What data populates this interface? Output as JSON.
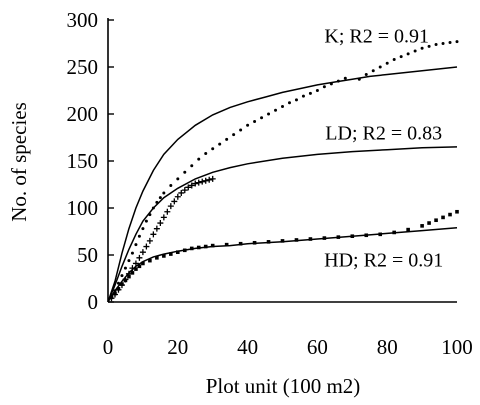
{
  "chart_data": {
    "type": "scatter",
    "title": "",
    "xlabel": "Plot unit (100 m2)",
    "ylabel": "No. of species",
    "xlim": [
      0,
      100
    ],
    "ylim": [
      0,
      300
    ],
    "x_ticks": [
      "0",
      "20",
      "40",
      "60",
      "80",
      "100"
    ],
    "y_ticks": [
      "0",
      "50",
      "100",
      "150",
      "200",
      "250",
      "300"
    ],
    "grid": false,
    "legend": "none",
    "annotations": [
      {
        "text": "K; R2 = 0.91",
        "x": 77,
        "y": 276
      },
      {
        "text": "LD; R2 = 0.83",
        "x": 79,
        "y": 173
      },
      {
        "text": "HD; R2 = 0.91",
        "x": 79,
        "y": 38
      }
    ],
    "series": [
      {
        "marker": "dot",
        "points": [
          [
            1,
            6
          ],
          [
            2,
            12
          ],
          [
            3,
            20
          ],
          [
            4,
            28
          ],
          [
            5,
            36
          ],
          [
            6,
            44
          ],
          [
            7,
            52
          ],
          [
            8,
            61
          ],
          [
            9,
            70
          ],
          [
            10,
            78
          ],
          [
            11,
            86
          ],
          [
            12,
            93
          ],
          [
            13,
            100
          ],
          [
            14,
            106
          ],
          [
            15,
            111
          ],
          [
            16,
            116
          ],
          [
            18,
            124
          ],
          [
            20,
            131
          ],
          [
            22,
            138
          ],
          [
            24,
            145
          ],
          [
            26,
            152
          ],
          [
            28,
            158
          ],
          [
            30,
            163
          ],
          [
            32,
            168
          ],
          [
            34,
            173
          ],
          [
            36,
            178
          ],
          [
            38,
            183
          ],
          [
            40,
            188
          ],
          [
            42,
            192
          ],
          [
            44,
            196
          ],
          [
            46,
            200
          ],
          [
            48,
            204
          ],
          [
            50,
            208
          ],
          [
            52,
            212
          ],
          [
            54,
            215
          ],
          [
            56,
            219
          ],
          [
            58,
            222
          ],
          [
            60,
            225
          ],
          [
            62,
            229
          ],
          [
            64,
            232
          ],
          [
            66,
            235
          ],
          [
            68,
            238
          ],
          [
            72,
            237
          ],
          [
            74,
            242
          ],
          [
            76,
            246
          ],
          [
            78,
            250
          ],
          [
            80,
            254
          ],
          [
            82,
            258
          ],
          [
            84,
            261
          ],
          [
            86,
            264
          ],
          [
            88,
            267
          ],
          [
            90,
            270
          ],
          [
            92,
            272
          ],
          [
            94,
            274
          ],
          [
            96,
            275
          ],
          [
            98,
            276
          ],
          [
            100,
            277
          ]
        ]
      },
      {
        "marker": "plus",
        "points": [
          [
            1,
            4
          ],
          [
            2,
            8
          ],
          [
            3,
            13
          ],
          [
            4,
            18
          ],
          [
            5,
            24
          ],
          [
            6,
            30
          ],
          [
            7,
            36
          ],
          [
            8,
            41
          ],
          [
            9,
            47
          ],
          [
            10,
            53
          ],
          [
            11,
            59
          ],
          [
            12,
            65
          ],
          [
            13,
            72
          ],
          [
            14,
            78
          ],
          [
            15,
            84
          ],
          [
            16,
            90
          ],
          [
            17,
            96
          ],
          [
            18,
            102
          ],
          [
            19,
            107
          ],
          [
            20,
            112
          ],
          [
            21,
            116
          ],
          [
            22,
            119
          ],
          [
            23,
            122
          ],
          [
            24,
            124
          ],
          [
            25,
            126
          ],
          [
            26,
            127
          ],
          [
            27,
            128
          ],
          [
            28,
            129
          ],
          [
            29,
            130
          ],
          [
            30,
            131
          ]
        ]
      },
      {
        "marker": "square",
        "points": [
          [
            1,
            5
          ],
          [
            2,
            9
          ],
          [
            3,
            14
          ],
          [
            4,
            19
          ],
          [
            5,
            23
          ],
          [
            6,
            27
          ],
          [
            7,
            31
          ],
          [
            8,
            35
          ],
          [
            9,
            38
          ],
          [
            10,
            41
          ],
          [
            12,
            44
          ],
          [
            14,
            47
          ],
          [
            16,
            49
          ],
          [
            18,
            51
          ],
          [
            20,
            53
          ],
          [
            22,
            55
          ],
          [
            24,
            57
          ],
          [
            26,
            58
          ],
          [
            28,
            59
          ],
          [
            30,
            60
          ],
          [
            34,
            61
          ],
          [
            38,
            62
          ],
          [
            42,
            63
          ],
          [
            46,
            64
          ],
          [
            50,
            65
          ],
          [
            54,
            66
          ],
          [
            58,
            67
          ],
          [
            62,
            68
          ],
          [
            66,
            69
          ],
          [
            70,
            70
          ],
          [
            74,
            71
          ],
          [
            78,
            72
          ],
          [
            82,
            74
          ],
          [
            86,
            77
          ],
          [
            90,
            81
          ],
          [
            92,
            84
          ],
          [
            94,
            87
          ],
          [
            96,
            90
          ],
          [
            98,
            93
          ],
          [
            100,
            96
          ]
        ]
      },
      {
        "style": "line",
        "points": [
          [
            0,
            0
          ],
          [
            2,
            22
          ],
          [
            4,
            52
          ],
          [
            6,
            78
          ],
          [
            8,
            100
          ],
          [
            10,
            118
          ],
          [
            13,
            140
          ],
          [
            16,
            157
          ],
          [
            20,
            173
          ],
          [
            25,
            188
          ],
          [
            30,
            199
          ],
          [
            35,
            207
          ],
          [
            40,
            213
          ],
          [
            45,
            218
          ],
          [
            50,
            223
          ],
          [
            55,
            227
          ],
          [
            60,
            231
          ],
          [
            65,
            234
          ],
          [
            70,
            237
          ],
          [
            75,
            240
          ],
          [
            80,
            242
          ],
          [
            85,
            244
          ],
          [
            90,
            246
          ],
          [
            95,
            248
          ],
          [
            100,
            250
          ]
        ]
      },
      {
        "style": "line",
        "points": [
          [
            0,
            0
          ],
          [
            2,
            18
          ],
          [
            4,
            38
          ],
          [
            6,
            56
          ],
          [
            8,
            72
          ],
          [
            10,
            86
          ],
          [
            13,
            100
          ],
          [
            16,
            111
          ],
          [
            20,
            121
          ],
          [
            25,
            131
          ],
          [
            30,
            138
          ],
          [
            35,
            143
          ],
          [
            40,
            147
          ],
          [
            50,
            153
          ],
          [
            60,
            157
          ],
          [
            70,
            160
          ],
          [
            80,
            162
          ],
          [
            90,
            164
          ],
          [
            100,
            165
          ]
        ]
      },
      {
        "style": "line",
        "points": [
          [
            0,
            0
          ],
          [
            2,
            12
          ],
          [
            4,
            22
          ],
          [
            6,
            31
          ],
          [
            8,
            38
          ],
          [
            10,
            43
          ],
          [
            13,
            48
          ],
          [
            16,
            51
          ],
          [
            20,
            54
          ],
          [
            25,
            57
          ],
          [
            30,
            59
          ],
          [
            35,
            60
          ],
          [
            40,
            62
          ],
          [
            50,
            64
          ],
          [
            60,
            67
          ],
          [
            70,
            70
          ],
          [
            80,
            73
          ],
          [
            90,
            76
          ],
          [
            100,
            79
          ]
        ]
      }
    ]
  }
}
